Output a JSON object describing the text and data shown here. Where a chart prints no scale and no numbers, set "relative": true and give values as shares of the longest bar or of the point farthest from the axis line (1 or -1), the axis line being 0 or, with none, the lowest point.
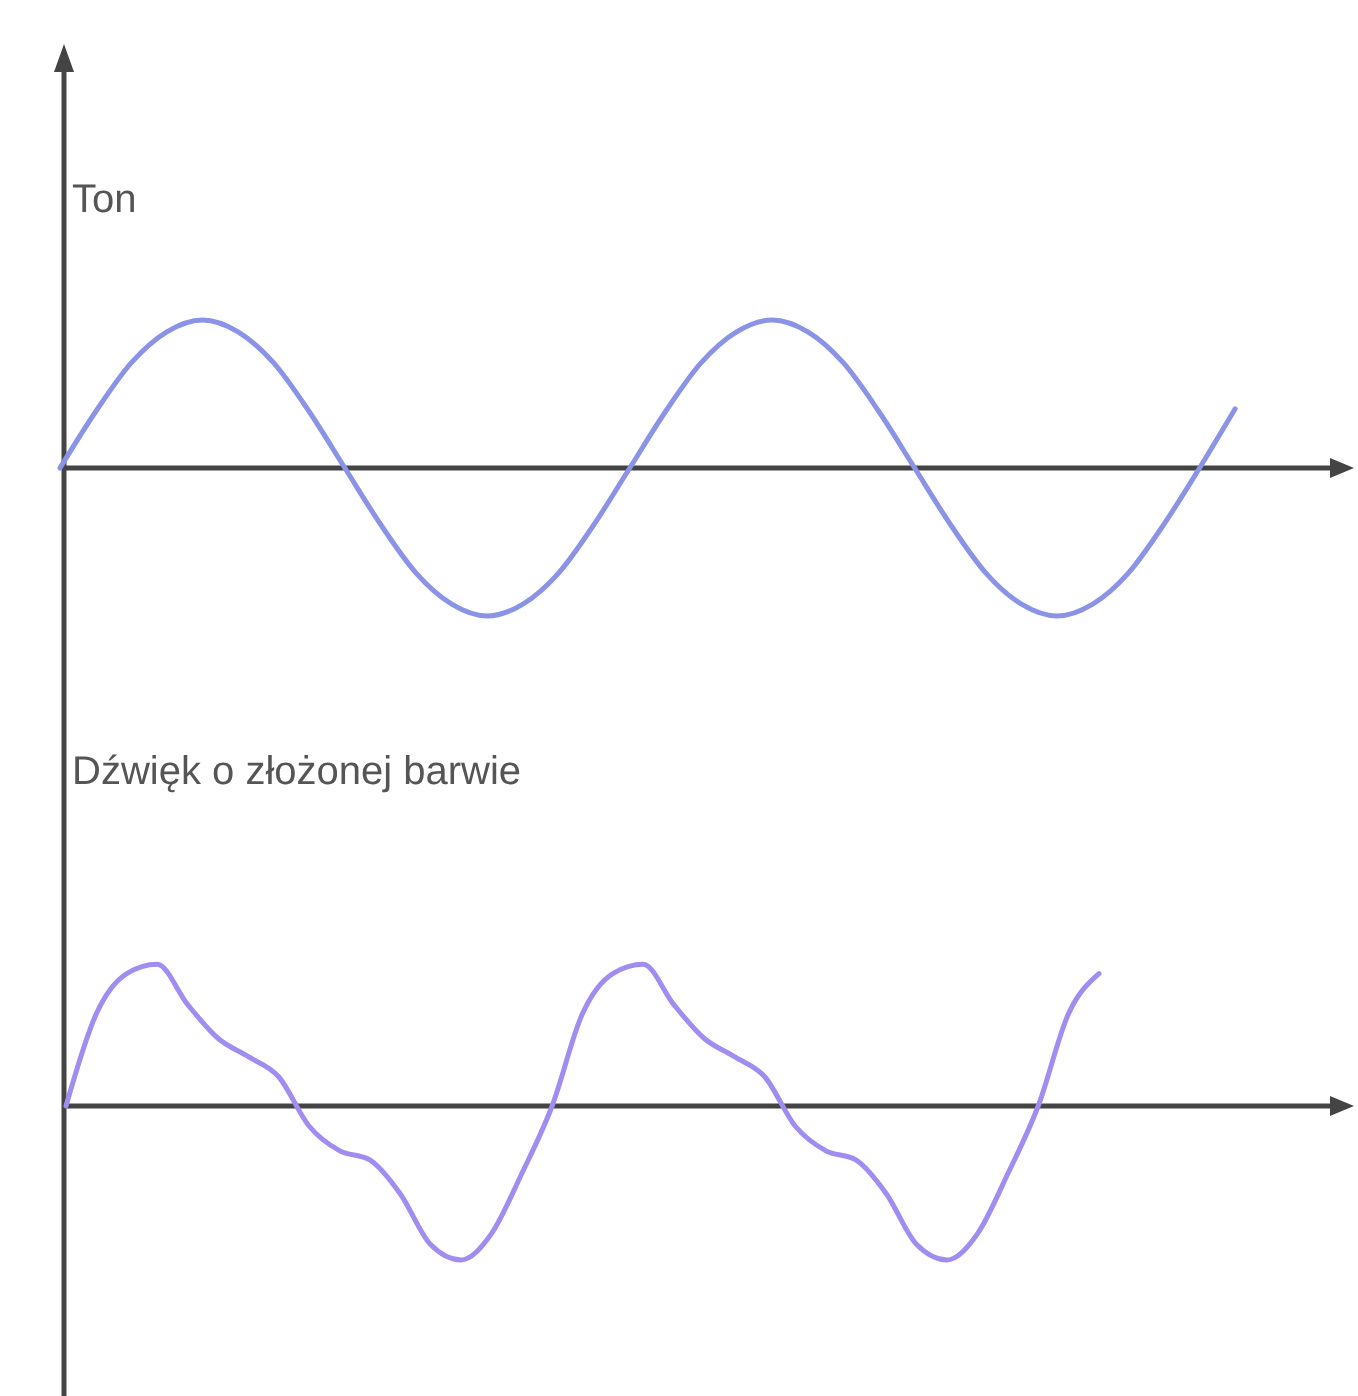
{
  "chart_data": [
    {
      "type": "line",
      "title": "Ton",
      "relative": true,
      "categories": [
        null,
        null,
        null,
        null,
        null,
        null,
        null,
        null,
        null,
        null,
        null,
        null,
        null,
        null,
        null,
        null,
        null,
        null,
        null,
        null,
        null,
        null,
        null,
        null,
        null,
        null,
        null,
        null,
        null,
        null,
        null,
        null,
        null,
        null,
        null,
        null,
        null
      ],
      "series": [
        {
          "color": "#8a93e6",
          "values": [
            0,
            0.38,
            0.71,
            0.92,
            1,
            0.92,
            0.71,
            0.38,
            0,
            -0.38,
            -0.71,
            -0.92,
            -1,
            -0.92,
            -0.71,
            -0.38,
            0,
            0.38,
            0.71,
            0.92,
            1,
            0.92,
            0.71,
            0.38,
            0,
            -0.38,
            -0.71,
            -0.92,
            -1,
            -0.92,
            -0.71,
            -0.38,
            0,
            0.4,
            null,
            null,
            null
          ]
        }
      ]
    },
    {
      "type": "line",
      "title": "Dźwięk o złożonej barwie",
      "relative": true,
      "categories": [
        null,
        null,
        null,
        null,
        null,
        null,
        null,
        null,
        null,
        null,
        null,
        null,
        null,
        null,
        null,
        null,
        null,
        null,
        null,
        null,
        null,
        null,
        null,
        null,
        null,
        null,
        null,
        null,
        null,
        null,
        null,
        null,
        null,
        null,
        null,
        null,
        null,
        null,
        null,
        null,
        null,
        null,
        null
      ],
      "series": [
        {
          "color": "#a18cf0",
          "values": [
            0,
            0.6,
            0.86,
            0.92,
            0.66,
            0.44,
            0.32,
            0.19,
            -0.13,
            -0.29,
            -0.35,
            -0.57,
            -0.9,
            -1,
            -0.83,
            -0.44,
            0,
            0.6,
            0.86,
            0.92,
            0.66,
            0.44,
            0.32,
            0.19,
            -0.13,
            -0.29,
            -0.35,
            -0.57,
            -0.9,
            -1,
            -0.83,
            -0.44,
            0,
            0.6,
            0.86,
            null,
            null,
            null,
            null,
            null,
            null,
            null,
            null
          ]
        }
      ]
    }
  ]
}
